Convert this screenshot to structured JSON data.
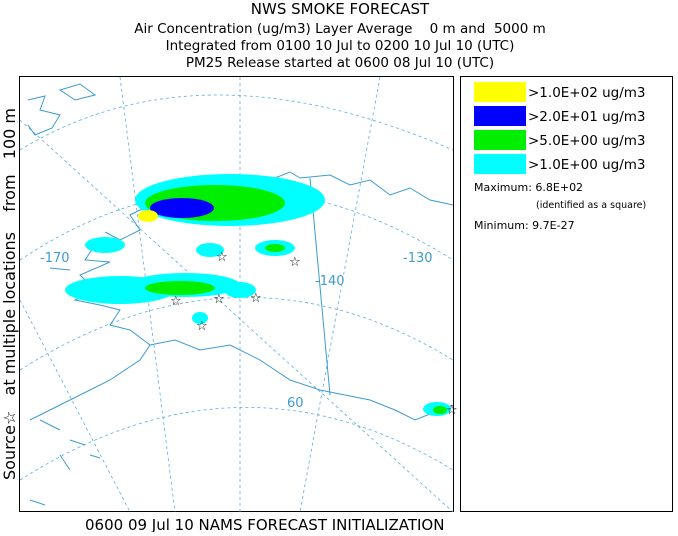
{
  "header": {
    "title": "NWS SMOKE FORECAST",
    "lines": [
      "Air Concentration (ug/m3) Layer Average    0 m and  5000 m",
      "Integrated from 0100 10 Jul to 0200 10 Jul 10 (UTC)",
      "PM25 Release started at 0600 08 Jul 10 (UTC)"
    ]
  },
  "side_label": "Source☆   at multiple locations    from   100 m",
  "footer": "0600 09 Jul 10 NAMS FORECAST INITIALIZATION",
  "legend": {
    "items": [
      {
        "color": "#ffff00",
        "label": ">1.0E+02 ug/m3"
      },
      {
        "color": "#0000ff",
        "label": ">2.0E+01 ug/m3"
      },
      {
        "color": "#00ee00",
        "label": ">5.0E+00 ug/m3"
      },
      {
        "color": "#00ffff",
        "label": ">1.0E+00 ug/m3"
      }
    ]
  },
  "stats": {
    "maximum": "Maximum: 6.8E+02",
    "note": "(identified as a square)",
    "minimum": "Minimum: 9.7E-27"
  },
  "map": {
    "labels": [
      "-170",
      "-140",
      "-130",
      "60"
    ]
  }
}
